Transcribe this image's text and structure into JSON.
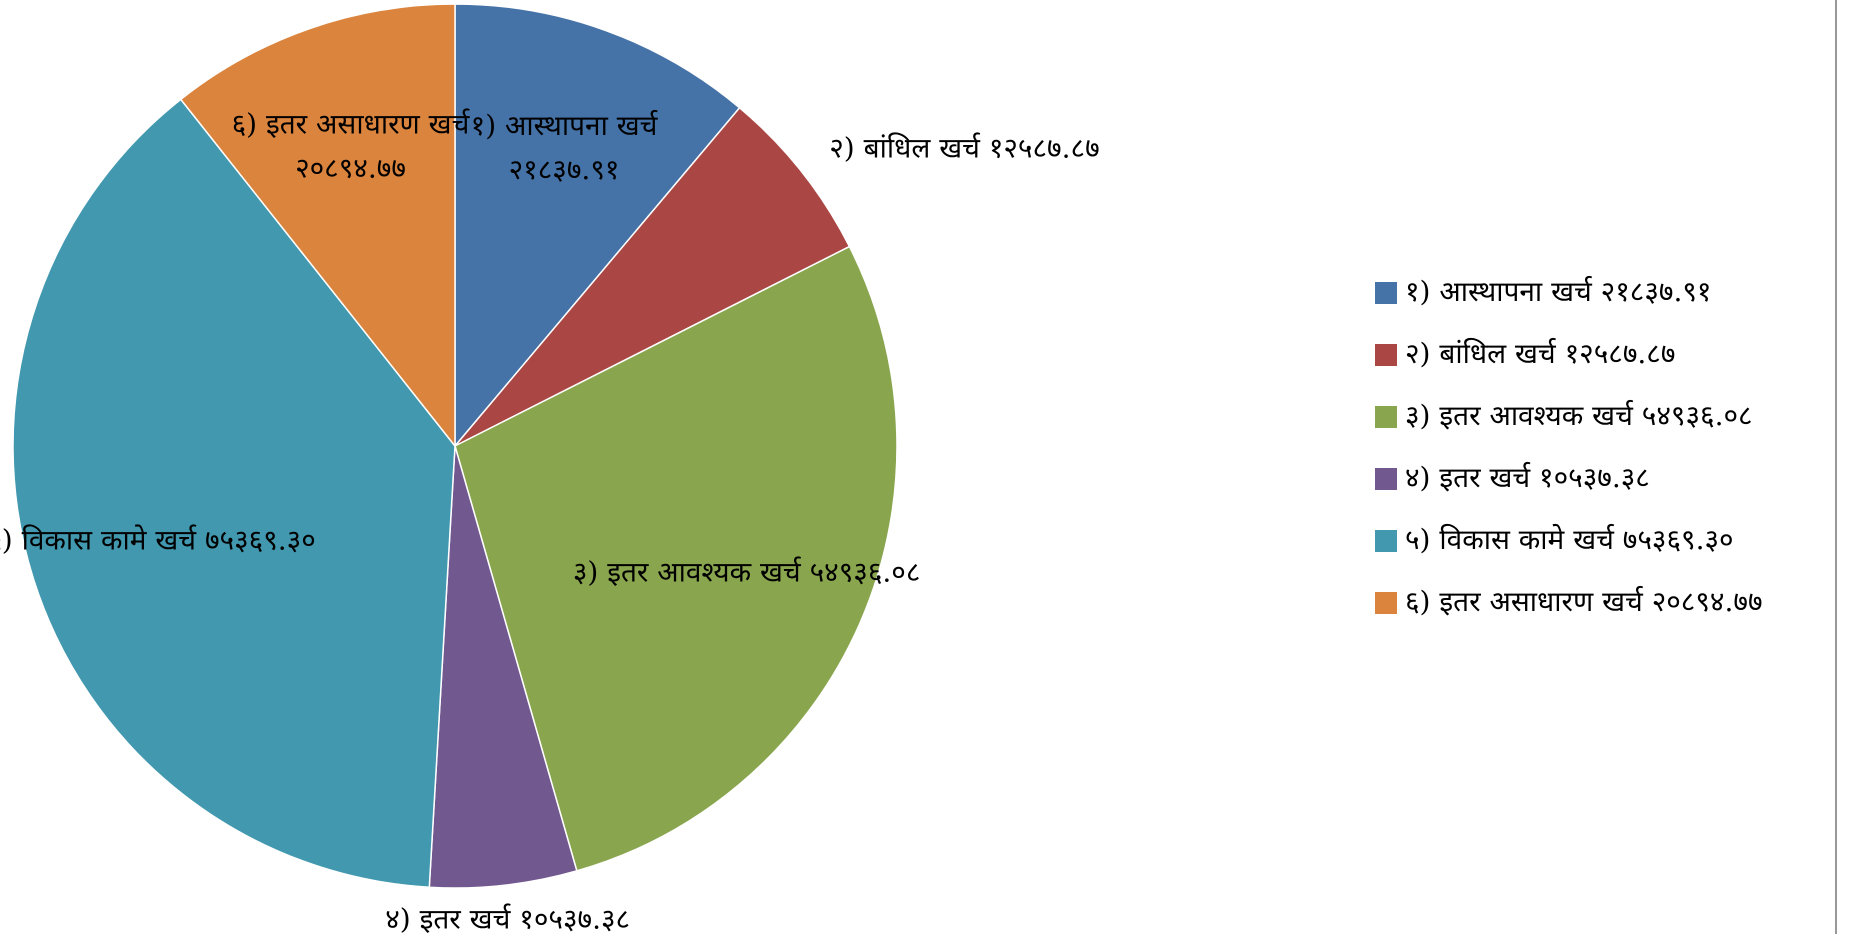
{
  "chart_data": {
    "type": "pie",
    "categories": [
      "१) आस्थापना खर्च",
      "२) बांधिल खर्च",
      "३) इतर आवश्यक खर्च",
      "४) इतर खर्च",
      "५) विकास कामे खर्च",
      "६) इतर असाधारण खर्च"
    ],
    "values": [
      21837.91,
      12587.87,
      54936.08,
      10537.38,
      75369.3,
      20894.77
    ],
    "value_labels": [
      "२१८३७.९१",
      "१२५८७.८७",
      "५४९३६.०८",
      "१०५३७.३८",
      "७५३६९.३०",
      "२०८९४.७७"
    ],
    "colors": [
      "#4572a7",
      "#aa4643",
      "#89a54e",
      "#71588f",
      "#4198af",
      "#db843d"
    ],
    "legend": "right"
  }
}
